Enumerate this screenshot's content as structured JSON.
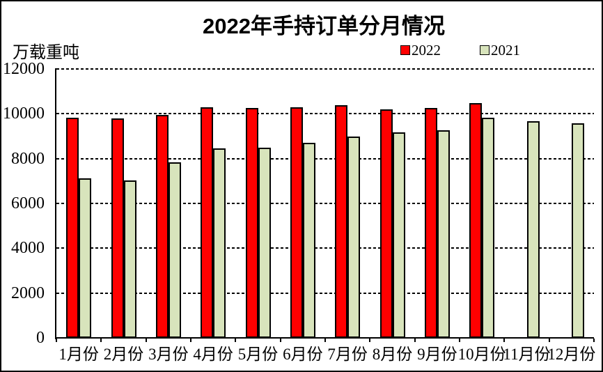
{
  "chart_data": {
    "type": "bar",
    "title": "2022年手持订单分月情况",
    "ylabel": "万载重吨",
    "xlabel": "",
    "categories": [
      "1月份",
      "2月份",
      "3月份",
      "4月份",
      "5月份",
      "6月份",
      "7月份",
      "8月份",
      "9月份",
      "10月份",
      "11月份",
      "12月份"
    ],
    "series": [
      {
        "name": "2022",
        "color": "#ff0000",
        "values": [
          9830,
          9800,
          9950,
          10290,
          10250,
          10300,
          10390,
          10190,
          10270,
          10480,
          null,
          null
        ]
      },
      {
        "name": "2021",
        "color": "#d8e4bc",
        "values": [
          7110,
          7040,
          7840,
          8450,
          8500,
          8690,
          8970,
          9160,
          9260,
          9830,
          9660,
          9590
        ]
      }
    ],
    "ylim": [
      0,
      12000
    ],
    "yticks": [
      0,
      2000,
      4000,
      6000,
      8000,
      10000,
      12000
    ],
    "grid": "horizontal-dashed",
    "legend_position": "top-right",
    "axis_color": "#000000",
    "background_color": "#ffffff"
  }
}
